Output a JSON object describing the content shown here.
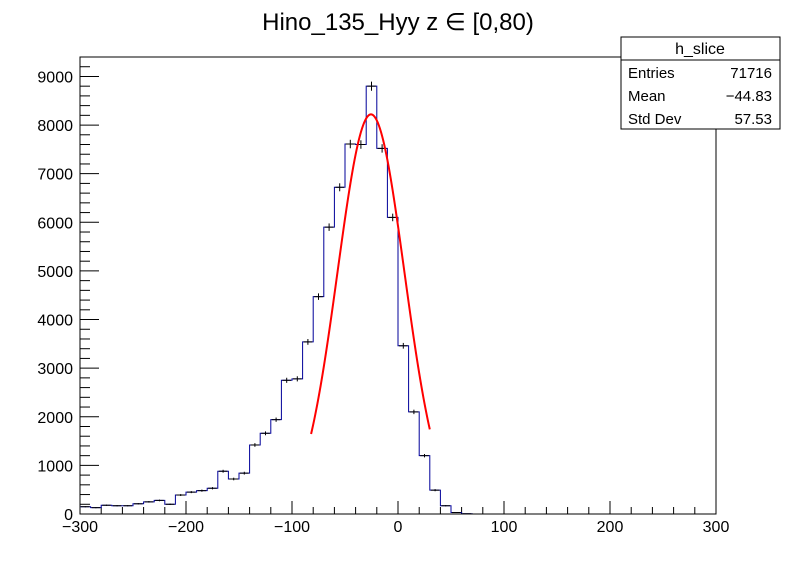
{
  "chart_data": {
    "type": "bar",
    "title": "Hino_135_Hyy z  ∈ [0,80)",
    "xlabel": "",
    "ylabel": "",
    "xlim": [
      -300,
      300
    ],
    "ylim": [
      0,
      9400
    ],
    "bin_width": 10,
    "x_ticks": [
      -300,
      -200,
      -100,
      0,
      100,
      200,
      300
    ],
    "x_tick_labels": [
      "−300",
      "−200",
      "−100",
      "0",
      "100",
      "200",
      "300"
    ],
    "y_ticks": [
      0,
      1000,
      2000,
      3000,
      4000,
      5000,
      6000,
      7000,
      8000,
      9000
    ],
    "y_tick_labels": [
      "0",
      "1000",
      "2000",
      "3000",
      "4000",
      "5000",
      "6000",
      "7000",
      "8000",
      "9000"
    ],
    "bin_low_edges": [
      -300,
      -290,
      -280,
      -270,
      -260,
      -250,
      -240,
      -230,
      -220,
      -210,
      -200,
      -190,
      -180,
      -170,
      -160,
      -150,
      -140,
      -130,
      -120,
      -110,
      -100,
      -90,
      -80,
      -70,
      -60,
      -50,
      -40,
      -30,
      -20,
      -10,
      0,
      10,
      20,
      30,
      40,
      50,
      60,
      70,
      80,
      90,
      100,
      110,
      120,
      130,
      140,
      150,
      160,
      170,
      180,
      190,
      200,
      210,
      220,
      230,
      240,
      250,
      260,
      270,
      280,
      290
    ],
    "values": [
      150,
      130,
      180,
      170,
      170,
      210,
      250,
      280,
      200,
      390,
      450,
      480,
      530,
      880,
      720,
      840,
      1420,
      1660,
      1940,
      2750,
      2780,
      3540,
      4470,
      5900,
      6720,
      7610,
      7600,
      8800,
      7520,
      6100,
      3460,
      2100,
      1200,
      490,
      170,
      30,
      5,
      0,
      0,
      0,
      0,
      0,
      0,
      0,
      0,
      0,
      0,
      0,
      0,
      0,
      0,
      0,
      0,
      0,
      0,
      0,
      0,
      0,
      0,
      0
    ],
    "colors": {
      "histogram": "#000099",
      "fit": "#ff0000",
      "frame": "#000000"
    },
    "fit": {
      "type": "gaussian",
      "range": [
        -82,
        30
      ],
      "constant": 8220,
      "mean": -25.5,
      "sigma": 31.5
    },
    "stats_box": {
      "title": "h_slice",
      "rows": [
        {
          "label": "Entries",
          "value": "71716"
        },
        {
          "label": "Mean",
          "value": "−44.83"
        },
        {
          "label": "Std Dev",
          "value": "57.53"
        }
      ]
    }
  }
}
